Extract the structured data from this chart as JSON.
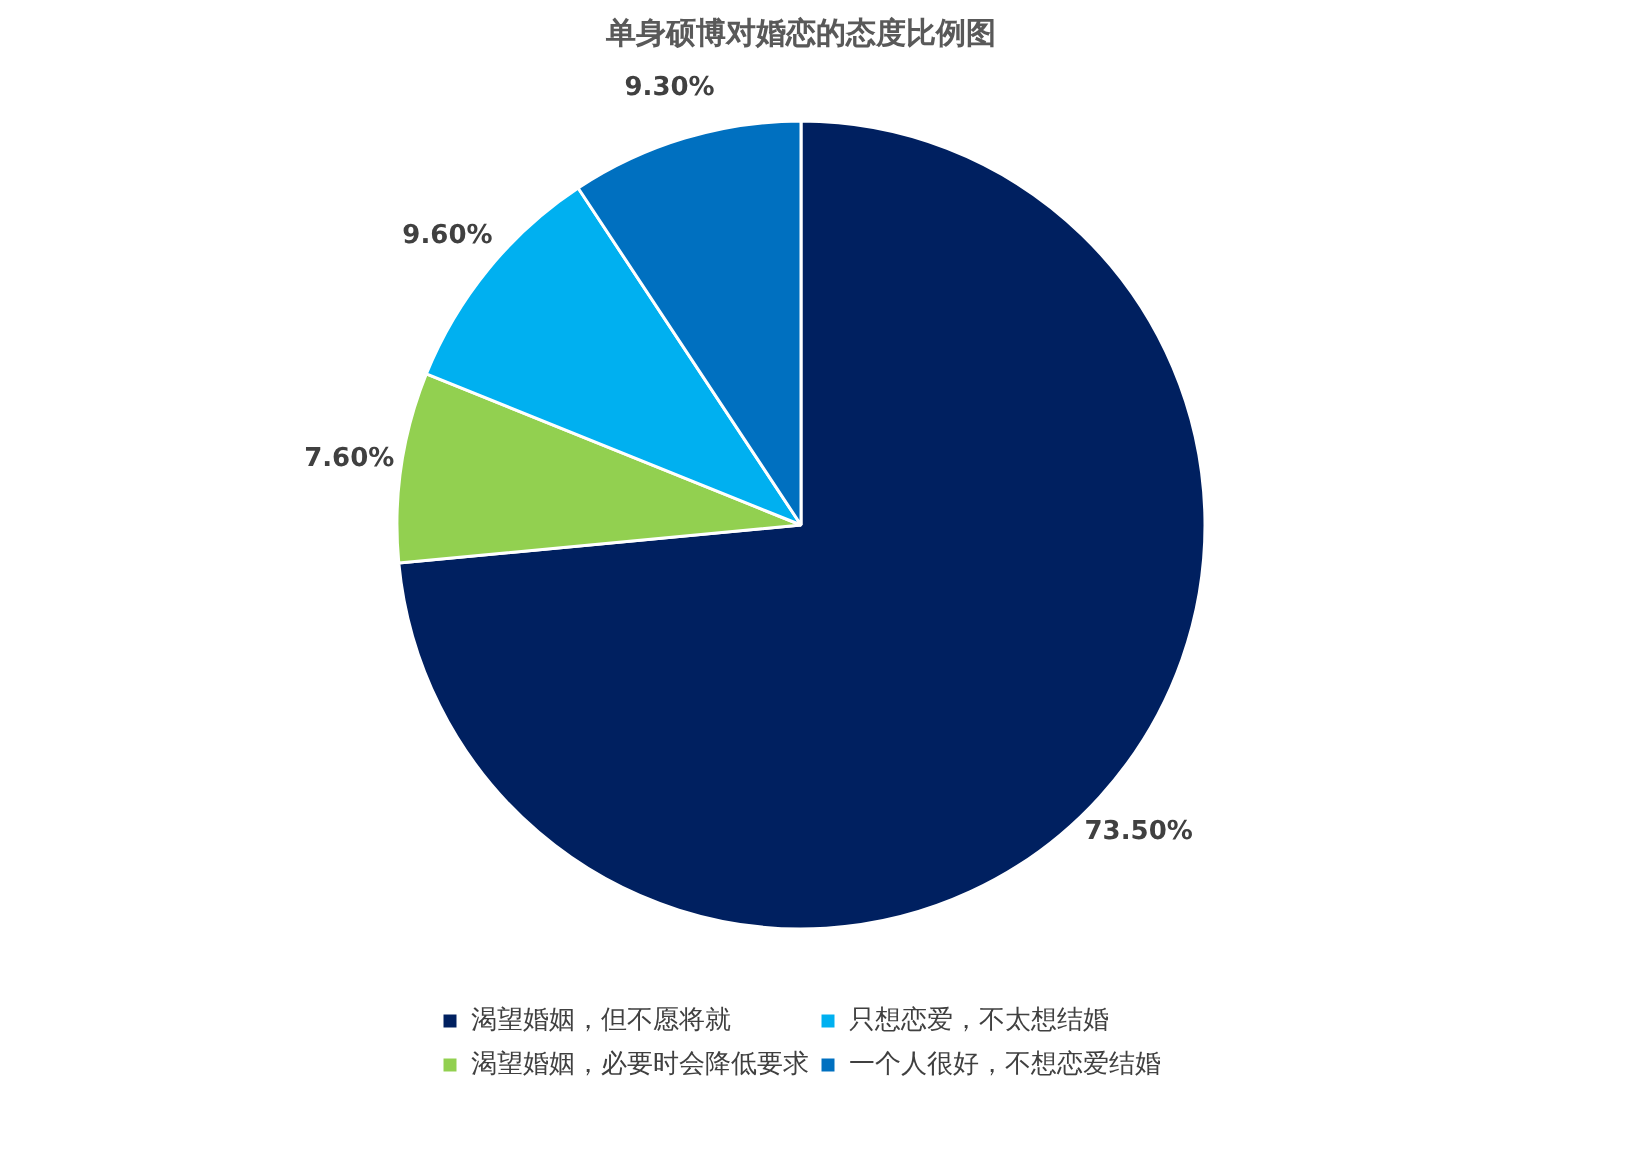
{
  "chart_data": {
    "type": "pie",
    "title": "单身硕博对婚恋的态度比例图",
    "categories": [
      "渴望婚姻，但不愿将就",
      "渴望婚姻，必要时会降低要求",
      "只想恋爱，不太想结婚",
      "一个人很好，不想恋爱结婚"
    ],
    "values": [
      73.5,
      7.6,
      9.6,
      9.3
    ],
    "colors": [
      "#002060",
      "#92d050",
      "#00b0f0",
      "#0070c0"
    ],
    "value_labels": [
      "73.50%",
      "7.60%",
      "9.60%",
      "9.30%"
    ],
    "legend": "bottom"
  }
}
